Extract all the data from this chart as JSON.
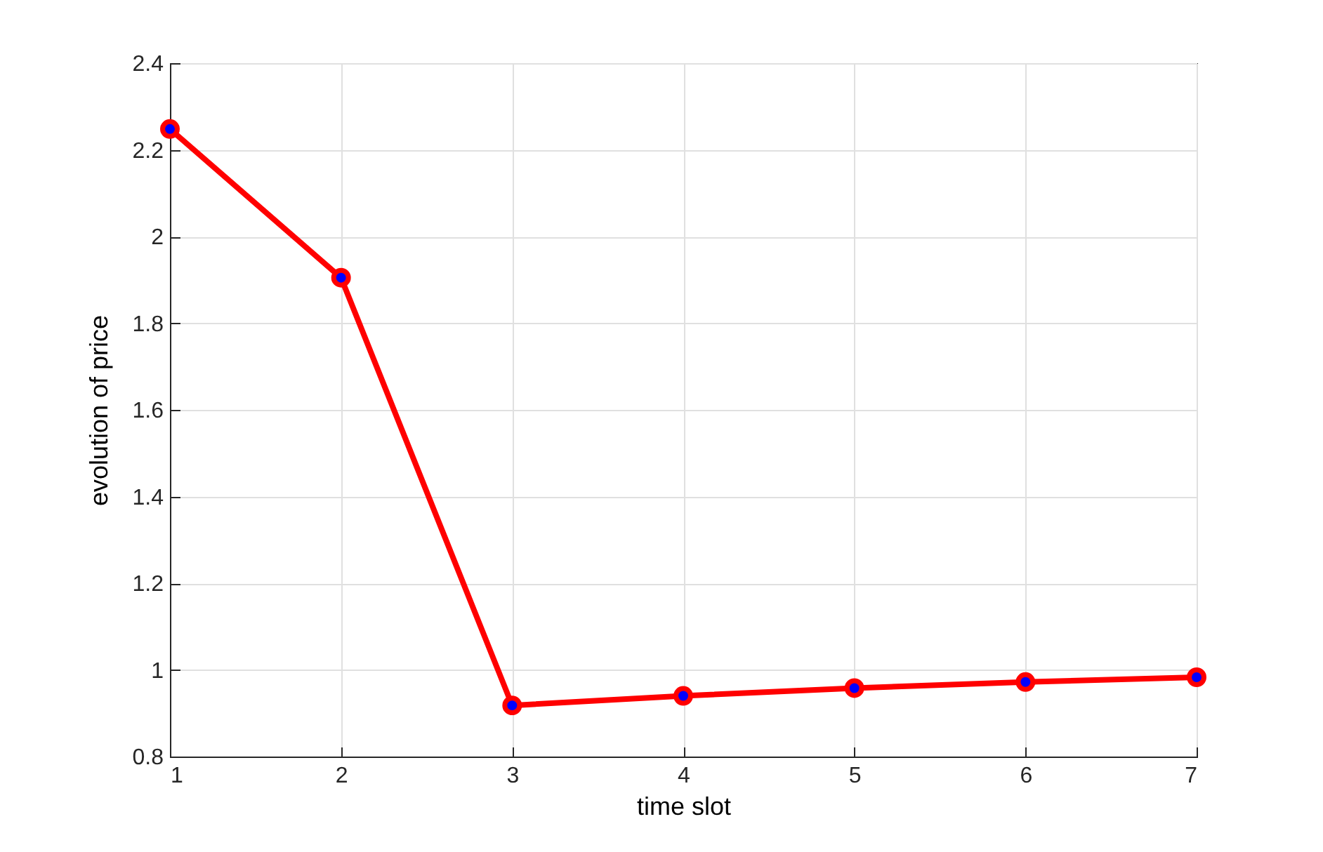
{
  "chart_data": {
    "type": "line",
    "xlabel": "time slot",
    "ylabel": "evolution of price",
    "x": [
      1,
      2,
      3,
      4,
      5,
      6,
      7
    ],
    "series": [
      {
        "color": "#ff0000",
        "values": [
          2.248,
          1.905,
          0.918,
          0.94,
          0.958,
          0.972,
          0.983
        ]
      }
    ],
    "xlim": [
      1,
      7
    ],
    "xticks": [
      1,
      2,
      3,
      4,
      5,
      6,
      7
    ],
    "ylim": [
      0.8,
      2.4
    ],
    "yticks": [
      0.8,
      1,
      1.2,
      1.4,
      1.6,
      1.8,
      2,
      2.2,
      2.4
    ],
    "grid": true,
    "marker": "circle",
    "line_style": "solid"
  }
}
